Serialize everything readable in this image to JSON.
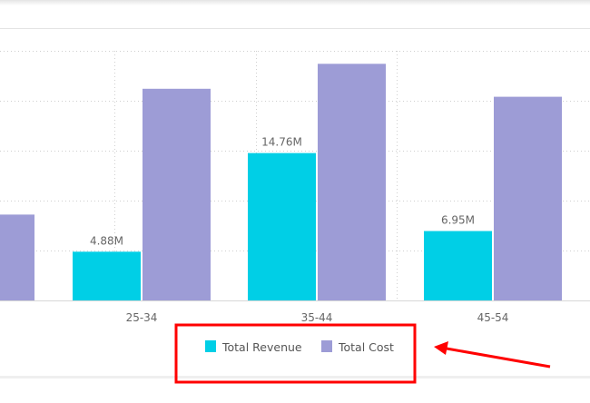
{
  "chart_data": {
    "type": "bar",
    "title": "",
    "xlabel": "",
    "ylabel": "",
    "ylim": [
      0,
      25000000
    ],
    "grid": true,
    "legend_position": "bottom-center",
    "categories": [
      "",
      "25-34",
      "35-44",
      "45-54"
    ],
    "series": [
      {
        "name": "Total Revenue",
        "color": "#00cfe6",
        "values": [
          null,
          4880000,
          14760000,
          6950000
        ],
        "labels": [
          "",
          "4.88M",
          "14.76M",
          "6.95M"
        ]
      },
      {
        "name": "Total Cost",
        "color": "#9d9cd6",
        "values": [
          8600000,
          21200000,
          23700000,
          20400000
        ]
      }
    ]
  },
  "annotation": {
    "color": "#ff0000"
  }
}
